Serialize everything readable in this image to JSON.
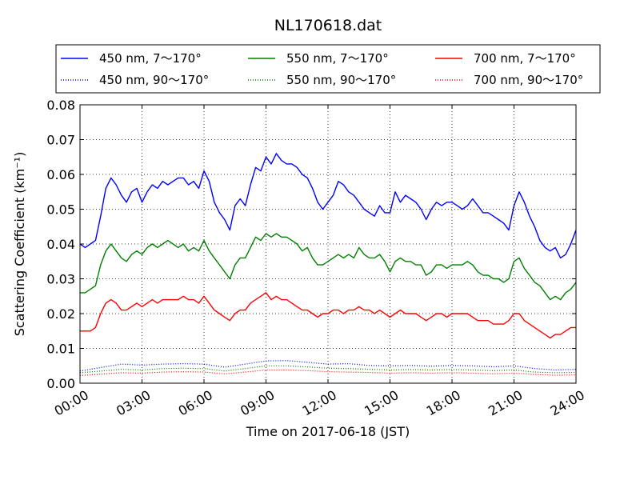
{
  "chart_data": {
    "type": "line",
    "title": "NL170618.dat",
    "xlabel": "Time on 2017-06-18 (JST)",
    "ylabel": "Scattering Coefficient (km⁻¹)",
    "x_unit": "hours",
    "xlim": [
      0,
      24
    ],
    "ylim": [
      0,
      0.08
    ],
    "grid": true,
    "legend_position": "top",
    "x_ticks": [
      {
        "value": 0,
        "label": "00:00"
      },
      {
        "value": 3,
        "label": "03:00"
      },
      {
        "value": 6,
        "label": "06:00"
      },
      {
        "value": 9,
        "label": "09:00"
      },
      {
        "value": 12,
        "label": "12:00"
      },
      {
        "value": 15,
        "label": "15:00"
      },
      {
        "value": 18,
        "label": "18:00"
      },
      {
        "value": 21,
        "label": "21:00"
      },
      {
        "value": 24,
        "label": "24:00"
      }
    ],
    "y_ticks": [
      {
        "value": 0,
        "label": "0.00"
      },
      {
        "value": 0.01,
        "label": "0.01"
      },
      {
        "value": 0.02,
        "label": "0.02"
      },
      {
        "value": 0.03,
        "label": "0.03"
      },
      {
        "value": 0.04,
        "label": "0.04"
      },
      {
        "value": 0.05,
        "label": "0.05"
      },
      {
        "value": 0.06,
        "label": "0.06"
      },
      {
        "value": 0.07,
        "label": "0.07"
      },
      {
        "value": 0.08,
        "label": "0.08"
      }
    ],
    "series": [
      {
        "name": "450 nm, 7～170°",
        "color": "#0000ff",
        "style": "solid",
        "x": [
          0.0,
          0.25,
          0.5,
          0.75,
          1.0,
          1.25,
          1.5,
          1.75,
          2.0,
          2.25,
          2.5,
          2.75,
          3.0,
          3.25,
          3.5,
          3.75,
          4.0,
          4.25,
          4.5,
          4.75,
          5.0,
          5.25,
          5.5,
          5.75,
          6.0,
          6.25,
          6.5,
          6.75,
          7.0,
          7.25,
          7.5,
          7.75,
          8.0,
          8.25,
          8.5,
          8.75,
          9.0,
          9.25,
          9.5,
          9.75,
          10.0,
          10.25,
          10.5,
          10.75,
          11.0,
          11.25,
          11.5,
          11.75,
          12.0,
          12.25,
          12.5,
          12.75,
          13.0,
          13.25,
          13.5,
          13.75,
          14.0,
          14.25,
          14.5,
          14.75,
          15.0,
          15.25,
          15.5,
          15.75,
          16.0,
          16.25,
          16.5,
          16.75,
          17.0,
          17.25,
          17.5,
          17.75,
          18.0,
          18.25,
          18.5,
          18.75,
          19.0,
          19.25,
          19.5,
          19.75,
          20.0,
          20.25,
          20.5,
          20.75,
          21.0,
          21.25,
          21.5,
          21.75,
          22.0,
          22.25,
          22.5,
          22.75,
          23.0,
          23.25,
          23.5,
          23.75,
          24.0
        ],
        "y": [
          0.04,
          0.039,
          0.04,
          0.041,
          0.048,
          0.056,
          0.059,
          0.057,
          0.054,
          0.052,
          0.055,
          0.056,
          0.052,
          0.055,
          0.057,
          0.056,
          0.058,
          0.057,
          0.058,
          0.059,
          0.059,
          0.057,
          0.058,
          0.056,
          0.061,
          0.058,
          0.052,
          0.049,
          0.047,
          0.044,
          0.051,
          0.053,
          0.051,
          0.057,
          0.062,
          0.061,
          0.065,
          0.063,
          0.066,
          0.064,
          0.063,
          0.063,
          0.062,
          0.06,
          0.059,
          0.056,
          0.052,
          0.05,
          0.052,
          0.054,
          0.058,
          0.057,
          0.055,
          0.054,
          0.052,
          0.05,
          0.049,
          0.048,
          0.051,
          0.049,
          0.049,
          0.055,
          0.052,
          0.054,
          0.053,
          0.052,
          0.05,
          0.047,
          0.05,
          0.052,
          0.051,
          0.052,
          0.052,
          0.051,
          0.05,
          0.051,
          0.053,
          0.051,
          0.049,
          0.049,
          0.048,
          0.047,
          0.046,
          0.044,
          0.051,
          0.055,
          0.052,
          0.048,
          0.045,
          0.041,
          0.039,
          0.038,
          0.039,
          0.036,
          0.037,
          0.04,
          0.044
        ]
      },
      {
        "name": "450 nm, 90～170°",
        "color": "#0000ff",
        "style": "dotted",
        "x": [
          0.0,
          1.0,
          2.0,
          3.0,
          4.0,
          5.0,
          6.0,
          7.0,
          8.0,
          9.0,
          10.0,
          11.0,
          12.0,
          13.0,
          14.0,
          15.0,
          16.0,
          17.0,
          18.0,
          19.0,
          20.0,
          21.0,
          22.0,
          23.0,
          24.0
        ],
        "y": [
          0.0035,
          0.0045,
          0.0055,
          0.0052,
          0.0055,
          0.0056,
          0.0055,
          0.0046,
          0.0055,
          0.0064,
          0.0065,
          0.006,
          0.0055,
          0.0056,
          0.0051,
          0.005,
          0.0051,
          0.0049,
          0.0051,
          0.005,
          0.0047,
          0.005,
          0.0042,
          0.0038,
          0.004
        ]
      },
      {
        "name": "550 nm, 7～170°",
        "color": "#008000",
        "style": "solid",
        "x": [
          0.0,
          0.25,
          0.5,
          0.75,
          1.0,
          1.25,
          1.5,
          1.75,
          2.0,
          2.25,
          2.5,
          2.75,
          3.0,
          3.25,
          3.5,
          3.75,
          4.0,
          4.25,
          4.5,
          4.75,
          5.0,
          5.25,
          5.5,
          5.75,
          6.0,
          6.25,
          6.5,
          6.75,
          7.0,
          7.25,
          7.5,
          7.75,
          8.0,
          8.25,
          8.5,
          8.75,
          9.0,
          9.25,
          9.5,
          9.75,
          10.0,
          10.25,
          10.5,
          10.75,
          11.0,
          11.25,
          11.5,
          11.75,
          12.0,
          12.25,
          12.5,
          12.75,
          13.0,
          13.25,
          13.5,
          13.75,
          14.0,
          14.25,
          14.5,
          14.75,
          15.0,
          15.25,
          15.5,
          15.75,
          16.0,
          16.25,
          16.5,
          16.75,
          17.0,
          17.25,
          17.5,
          17.75,
          18.0,
          18.25,
          18.5,
          18.75,
          19.0,
          19.25,
          19.5,
          19.75,
          20.0,
          20.25,
          20.5,
          20.75,
          21.0,
          21.25,
          21.5,
          21.75,
          22.0,
          22.25,
          22.5,
          22.75,
          23.0,
          23.25,
          23.5,
          23.75,
          24.0
        ],
        "y": [
          0.026,
          0.026,
          0.027,
          0.028,
          0.034,
          0.038,
          0.04,
          0.038,
          0.036,
          0.035,
          0.037,
          0.038,
          0.037,
          0.039,
          0.04,
          0.039,
          0.04,
          0.041,
          0.04,
          0.039,
          0.04,
          0.038,
          0.039,
          0.038,
          0.041,
          0.038,
          0.036,
          0.034,
          0.032,
          0.03,
          0.034,
          0.036,
          0.036,
          0.039,
          0.042,
          0.041,
          0.043,
          0.042,
          0.043,
          0.042,
          0.042,
          0.041,
          0.04,
          0.038,
          0.039,
          0.036,
          0.034,
          0.034,
          0.035,
          0.036,
          0.037,
          0.036,
          0.037,
          0.036,
          0.039,
          0.037,
          0.036,
          0.036,
          0.037,
          0.035,
          0.032,
          0.035,
          0.036,
          0.035,
          0.035,
          0.034,
          0.034,
          0.031,
          0.032,
          0.034,
          0.034,
          0.033,
          0.034,
          0.034,
          0.034,
          0.035,
          0.034,
          0.032,
          0.031,
          0.031,
          0.03,
          0.03,
          0.029,
          0.03,
          0.035,
          0.036,
          0.033,
          0.031,
          0.029,
          0.028,
          0.026,
          0.024,
          0.025,
          0.024,
          0.026,
          0.027,
          0.029
        ]
      },
      {
        "name": "550 nm, 90～170°",
        "color": "#008000",
        "style": "dotted",
        "x": [
          0.0,
          1.0,
          2.0,
          3.0,
          4.0,
          5.0,
          6.0,
          7.0,
          8.0,
          9.0,
          10.0,
          11.0,
          12.0,
          13.0,
          14.0,
          15.0,
          16.0,
          17.0,
          18.0,
          19.0,
          20.0,
          21.0,
          22.0,
          23.0,
          24.0
        ],
        "y": [
          0.003,
          0.0035,
          0.004,
          0.0038,
          0.0042,
          0.0043,
          0.0042,
          0.0035,
          0.0042,
          0.005,
          0.005,
          0.0047,
          0.0043,
          0.0042,
          0.004,
          0.0038,
          0.0039,
          0.0038,
          0.0039,
          0.0038,
          0.0036,
          0.0038,
          0.0032,
          0.003,
          0.0031
        ]
      },
      {
        "name": "700 nm, 7～170°",
        "color": "#ff0000",
        "style": "solid",
        "x": [
          0.0,
          0.25,
          0.5,
          0.75,
          1.0,
          1.25,
          1.5,
          1.75,
          2.0,
          2.25,
          2.5,
          2.75,
          3.0,
          3.25,
          3.5,
          3.75,
          4.0,
          4.25,
          4.5,
          4.75,
          5.0,
          5.25,
          5.5,
          5.75,
          6.0,
          6.25,
          6.5,
          6.75,
          7.0,
          7.25,
          7.5,
          7.75,
          8.0,
          8.25,
          8.5,
          8.75,
          9.0,
          9.25,
          9.5,
          9.75,
          10.0,
          10.25,
          10.5,
          10.75,
          11.0,
          11.25,
          11.5,
          11.75,
          12.0,
          12.25,
          12.5,
          12.75,
          13.0,
          13.25,
          13.5,
          13.75,
          14.0,
          14.25,
          14.5,
          14.75,
          15.0,
          15.25,
          15.5,
          15.75,
          16.0,
          16.25,
          16.5,
          16.75,
          17.0,
          17.25,
          17.5,
          17.75,
          18.0,
          18.25,
          18.5,
          18.75,
          19.0,
          19.25,
          19.5,
          19.75,
          20.0,
          20.25,
          20.5,
          20.75,
          21.0,
          21.25,
          21.5,
          21.75,
          22.0,
          22.25,
          22.5,
          22.75,
          23.0,
          23.25,
          23.5,
          23.75,
          24.0
        ],
        "y": [
          0.015,
          0.015,
          0.015,
          0.016,
          0.02,
          0.023,
          0.024,
          0.023,
          0.021,
          0.021,
          0.022,
          0.023,
          0.022,
          0.023,
          0.024,
          0.023,
          0.024,
          0.024,
          0.024,
          0.024,
          0.025,
          0.024,
          0.024,
          0.023,
          0.025,
          0.023,
          0.021,
          0.02,
          0.019,
          0.018,
          0.02,
          0.021,
          0.021,
          0.023,
          0.024,
          0.025,
          0.026,
          0.024,
          0.025,
          0.024,
          0.024,
          0.023,
          0.022,
          0.021,
          0.021,
          0.02,
          0.019,
          0.02,
          0.02,
          0.021,
          0.021,
          0.02,
          0.021,
          0.021,
          0.022,
          0.021,
          0.021,
          0.02,
          0.021,
          0.02,
          0.019,
          0.02,
          0.021,
          0.02,
          0.02,
          0.02,
          0.019,
          0.018,
          0.019,
          0.02,
          0.02,
          0.019,
          0.02,
          0.02,
          0.02,
          0.02,
          0.019,
          0.018,
          0.018,
          0.018,
          0.017,
          0.017,
          0.017,
          0.018,
          0.02,
          0.02,
          0.018,
          0.017,
          0.016,
          0.015,
          0.014,
          0.013,
          0.014,
          0.014,
          0.015,
          0.016,
          0.016
        ]
      },
      {
        "name": "700 nm, 90～170°",
        "color": "#ff0000",
        "style": "dotted",
        "x": [
          0.0,
          1.0,
          2.0,
          3.0,
          4.0,
          5.0,
          6.0,
          7.0,
          8.0,
          9.0,
          10.0,
          11.0,
          12.0,
          13.0,
          14.0,
          15.0,
          16.0,
          17.0,
          18.0,
          19.0,
          20.0,
          21.0,
          22.0,
          23.0,
          24.0
        ],
        "y": [
          0.0022,
          0.0026,
          0.003,
          0.0029,
          0.0032,
          0.0033,
          0.0032,
          0.0027,
          0.0032,
          0.0038,
          0.0038,
          0.0036,
          0.0033,
          0.0032,
          0.0031,
          0.0029,
          0.003,
          0.0029,
          0.003,
          0.0029,
          0.0027,
          0.0029,
          0.0025,
          0.0023,
          0.0024
        ]
      }
    ]
  }
}
